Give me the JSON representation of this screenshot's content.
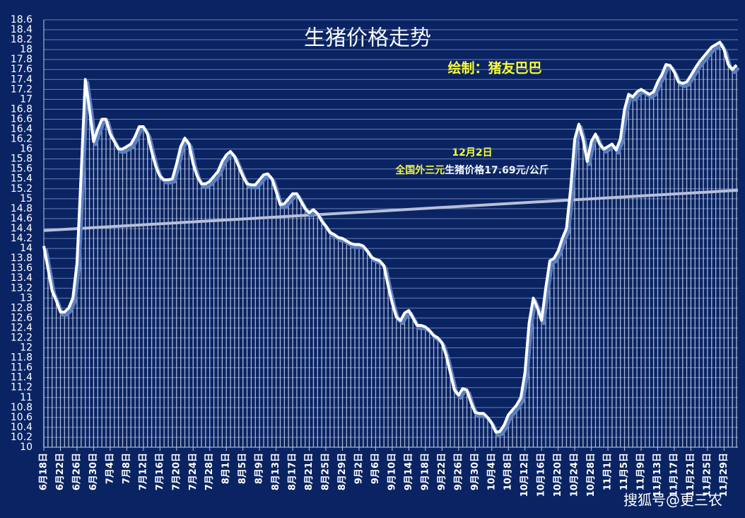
{
  "chart_data": {
    "type": "line",
    "title": "生猪价格走势",
    "annotations": [
      "绘制：猪友巴巴",
      "12月2日",
      "全国外三元",
      "生猪价格17.69元/公斤",
      "搜狐号@更三农"
    ],
    "categories": [
      "6月18日",
      null,
      null,
      null,
      "6月22日",
      null,
      null,
      null,
      "6月26日",
      null,
      null,
      null,
      "6月30日",
      null,
      null,
      null,
      "7月4日",
      null,
      null,
      null,
      "7月8日",
      null,
      null,
      null,
      "7月12日",
      null,
      null,
      null,
      "7月16日",
      null,
      null,
      null,
      "7月20日",
      null,
      null,
      null,
      "7月24日",
      null,
      null,
      null,
      "7月28日",
      null,
      null,
      null,
      "8月1日",
      null,
      null,
      null,
      "8月5日",
      null,
      null,
      null,
      "8月9日",
      null,
      null,
      null,
      "8月13日",
      null,
      null,
      null,
      "8月17日",
      null,
      null,
      null,
      "8月21日",
      null,
      null,
      null,
      "8月25日",
      null,
      null,
      null,
      "8月29日",
      null,
      null,
      null,
      "9月2日",
      null,
      null,
      null,
      "9月6日",
      null,
      null,
      null,
      "9月10日",
      null,
      null,
      null,
      "9月14日",
      null,
      null,
      null,
      "9月18日",
      null,
      null,
      null,
      "9月22日",
      null,
      null,
      null,
      "9月26日",
      null,
      null,
      null,
      "9月30日",
      null,
      null,
      null,
      "10月4日",
      null,
      null,
      null,
      "10月8日",
      null,
      null,
      null,
      "10月12日",
      null,
      null,
      null,
      "10月16日",
      null,
      null,
      null,
      "10月20日",
      null,
      null,
      null,
      "10月24日",
      null,
      null,
      null,
      "10月28日",
      null,
      null,
      null,
      "11月1日",
      null,
      null,
      null,
      "11月5日",
      null,
      null,
      null,
      "11月9日",
      null,
      null,
      null,
      "11月13日",
      null,
      null,
      null,
      "11月17日",
      null,
      null,
      null,
      "11月21日",
      null,
      null,
      null,
      "11月25日",
      null,
      null,
      null,
      "11月29日",
      null,
      null,
      null
    ],
    "values": [
      14.05,
      13.6,
      13.15,
      12.95,
      12.72,
      12.72,
      12.8,
      13.0,
      13.7,
      15.5,
      17.4,
      16.8,
      16.15,
      16.4,
      16.6,
      16.6,
      16.3,
      16.15,
      16.0,
      16.0,
      16.05,
      16.1,
      16.25,
      16.45,
      16.45,
      16.3,
      15.95,
      15.65,
      15.45,
      15.38,
      15.38,
      15.4,
      15.7,
      16.05,
      16.22,
      16.1,
      15.7,
      15.45,
      15.3,
      15.3,
      15.35,
      15.45,
      15.55,
      15.75,
      15.88,
      15.95,
      15.85,
      15.65,
      15.45,
      15.3,
      15.28,
      15.28,
      15.38,
      15.48,
      15.5,
      15.4,
      15.15,
      14.88,
      14.9,
      15.0,
      15.1,
      15.1,
      14.95,
      14.8,
      14.72,
      14.78,
      14.7,
      14.55,
      14.45,
      14.32,
      14.28,
      14.22,
      14.2,
      14.15,
      14.1,
      14.08,
      14.08,
      14.05,
      13.95,
      13.82,
      13.78,
      13.75,
      13.65,
      13.25,
      12.9,
      12.62,
      12.55,
      12.7,
      12.75,
      12.6,
      12.45,
      12.45,
      12.42,
      12.35,
      12.25,
      12.2,
      12.1,
      11.85,
      11.5,
      11.15,
      11.05,
      11.18,
      11.15,
      10.9,
      10.7,
      10.68,
      10.68,
      10.6,
      10.48,
      10.3,
      10.32,
      10.45,
      10.65,
      10.75,
      10.85,
      11.0,
      11.5,
      12.5,
      13.0,
      12.8,
      12.55,
      13.2,
      13.75,
      13.8,
      13.95,
      14.2,
      14.4,
      15.2,
      16.2,
      16.5,
      16.2,
      15.75,
      16.15,
      16.3,
      16.1,
      16.0,
      16.05,
      16.1,
      15.98,
      16.2,
      16.8,
      17.1,
      17.05,
      17.15,
      17.2,
      17.15,
      17.1,
      17.15,
      17.35,
      17.5,
      17.7,
      17.68,
      17.55,
      17.35,
      17.32,
      17.35,
      17.48,
      17.62,
      17.75,
      17.85,
      17.95,
      18.05,
      18.1,
      18.15,
      18.0,
      17.7,
      17.6,
      17.69
    ],
    "color": "#ffffff",
    "trendline": [
      14.36,
      15.17
    ],
    "ylim": [
      10,
      18.6
    ],
    "yticks": [
      10,
      10.2,
      10.4,
      10.6,
      10.8,
      11,
      11.2,
      11.4,
      11.6,
      11.8,
      12,
      12.2,
      12.4,
      12.6,
      12.8,
      13,
      13.2,
      13.4,
      13.6,
      13.8,
      14,
      14.2,
      14.4,
      14.6,
      14.8,
      15,
      15.2,
      15.4,
      15.6,
      15.8,
      16,
      16.2,
      16.4,
      16.6,
      16.8,
      17,
      17.2,
      17.4,
      17.6,
      17.8,
      18,
      18.2,
      18.4,
      18.6
    ],
    "grid": true
  }
}
